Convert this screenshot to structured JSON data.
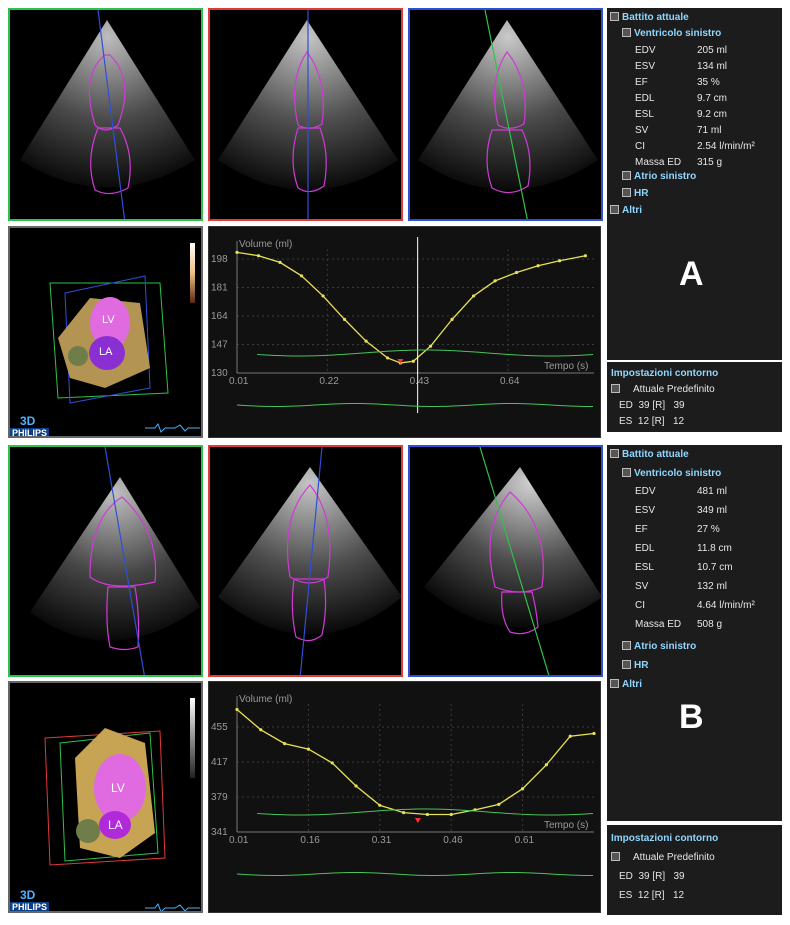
{
  "panels": [
    {
      "label": "A",
      "sidebar": {
        "beat_title": "Battito attuale",
        "lv_title": "Ventricolo sinistro",
        "metrics": [
          {
            "name": "EDV",
            "value": "205 ml"
          },
          {
            "name": "ESV",
            "value": "134 ml"
          },
          {
            "name": "EF",
            "value": "35 %"
          },
          {
            "name": "EDL",
            "value": "9.7 cm"
          },
          {
            "name": "ESL",
            "value": "9.2 cm"
          },
          {
            "name": "SV",
            "value": "71 ml"
          },
          {
            "name": "CI",
            "value": "2.54 l/min/m²"
          },
          {
            "name": "Massa ED",
            "value": "315 g"
          }
        ],
        "la_title": "Atrio sinistro",
        "hr_title": "HR",
        "altri_title": "Altri"
      },
      "contour": {
        "title": "Impostazioni contorno",
        "col_current": "Attuale",
        "col_default": "Predefinito",
        "rows": [
          {
            "name": "ED",
            "current": "39 [R]",
            "default": "39"
          },
          {
            "name": "ES",
            "current": "12 [R]",
            "default": "12"
          }
        ]
      },
      "model": {
        "lv": "LV",
        "la": "LA"
      },
      "chart_data": {
        "type": "line",
        "title": "Volume (ml)",
        "xlabel": "Tempo (s)",
        "yticks": [
          "198",
          "181",
          "164",
          "147",
          "130"
        ],
        "xticks": [
          "0.01",
          "0.22",
          "0.43",
          "0.64"
        ],
        "ylim": [
          130,
          204
        ],
        "xlim": [
          0.01,
          0.84
        ],
        "series": [
          {
            "x": [
              0.01,
              0.06,
              0.11,
              0.16,
              0.21,
              0.26,
              0.31,
              0.36,
              0.39,
              0.42,
              0.46,
              0.51,
              0.56,
              0.61,
              0.66,
              0.71,
              0.76,
              0.82
            ],
            "y": [
              202,
              200,
              196,
              188,
              176,
              162,
              149,
              139,
              136,
              137,
              146,
              162,
              176,
              185,
              190,
              194,
              197,
              200
            ]
          }
        ],
        "cursor_x": 0.43,
        "min_marker_x": 0.39
      }
    },
    {
      "label": "B",
      "sidebar": {
        "beat_title": "Battito attuale",
        "lv_title": "Ventricolo sinistro",
        "metrics": [
          {
            "name": "EDV",
            "value": "481 ml"
          },
          {
            "name": "ESV",
            "value": "349 ml"
          },
          {
            "name": "EF",
            "value": "27 %"
          },
          {
            "name": "EDL",
            "value": "11.8 cm"
          },
          {
            "name": "ESL",
            "value": "10.7 cm"
          },
          {
            "name": "SV",
            "value": "132 ml"
          },
          {
            "name": "CI",
            "value": "4.64 l/min/m²"
          },
          {
            "name": "Massa ED",
            "value": "508 g"
          }
        ],
        "la_title": "Atrio sinistro",
        "hr_title": "HR",
        "altri_title": "Altri"
      },
      "contour": {
        "title": "Impostazioni contorno",
        "col_current": "Attuale",
        "col_default": "Predefinito",
        "rows": [
          {
            "name": "ED",
            "current": "39 [R]",
            "default": "39"
          },
          {
            "name": "ES",
            "current": "12 [R]",
            "default": "12"
          }
        ]
      },
      "model": {
        "lv": "LV",
        "la": "LA"
      },
      "chart_data": {
        "type": "line",
        "title": "Volume (ml)",
        "xlabel": "Tempo (s)",
        "yticks": [
          "455",
          "417",
          "379",
          "341"
        ],
        "xticks": [
          "0.01",
          "0.16",
          "0.31",
          "0.46",
          "0.61"
        ],
        "ylim": [
          341,
          480
        ],
        "xlim": [
          0.01,
          0.76
        ],
        "series": [
          {
            "x": [
              0.01,
              0.06,
              0.11,
              0.16,
              0.21,
              0.26,
              0.31,
              0.36,
              0.41,
              0.46,
              0.51,
              0.56,
              0.61,
              0.66,
              0.71,
              0.76
            ],
            "y": [
              474,
              452,
              437,
              431,
              416,
              391,
              370,
              362,
              360,
              360,
              365,
              371,
              388,
              414,
              445,
              448
            ]
          }
        ],
        "cursor_x": null,
        "min_marker_x": 0.39
      }
    }
  ],
  "branding": {
    "mode": "3D",
    "vendor": "PHILIPS"
  },
  "colors": {
    "green": "#2fc24a",
    "red": "#e03a3a",
    "blue": "#2f4fd6",
    "trace": "#e6e255",
    "ecg": "#49c45a",
    "contour": "#d13ad6"
  }
}
